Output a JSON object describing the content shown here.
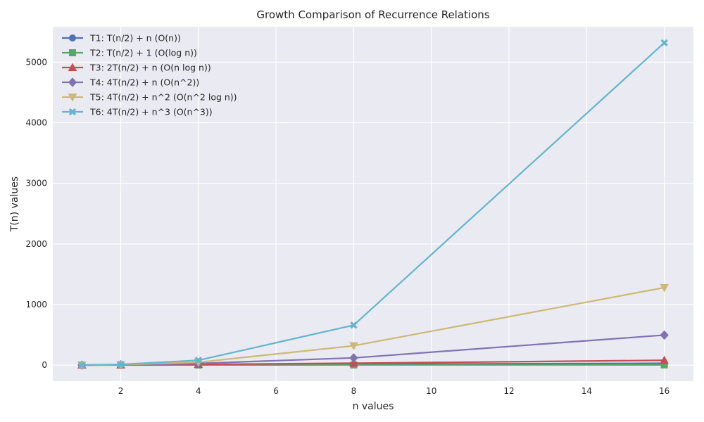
{
  "chart_data": {
    "type": "line",
    "title": "Growth Comparison of Recurrence Relations",
    "xlabel": "n values",
    "ylabel": "T(n) values",
    "xlim": [
      0.25,
      16.75
    ],
    "ylim": [
      -265,
      5585
    ],
    "xticks": [
      2,
      4,
      6,
      8,
      10,
      12,
      14,
      16
    ],
    "yticks": [
      0,
      1000,
      2000,
      3000,
      4000,
      5000
    ],
    "grid": true,
    "legend_position": "top-left",
    "x": [
      1,
      2,
      4,
      8,
      16
    ],
    "series": [
      {
        "name": "T1: T(n/2) + n (O(n))",
        "color": "#4c72b0",
        "marker": "circle",
        "values": [
          1,
          3,
          7,
          15,
          31
        ]
      },
      {
        "name": "T2: T(n/2) + 1 (O(log n))",
        "color": "#55a868",
        "marker": "square",
        "values": [
          1,
          2,
          3,
          4,
          5
        ]
      },
      {
        "name": "T3: 2T(n/2) + n (O(n log n))",
        "color": "#c44e52",
        "marker": "triangle-up",
        "values": [
          1,
          4,
          12,
          32,
          80
        ]
      },
      {
        "name": "T4: 4T(n/2) + n (O(n^2))",
        "color": "#8172b2",
        "marker": "diamond",
        "values": [
          1,
          6,
          28,
          120,
          496
        ]
      },
      {
        "name": "T5: 4T(n/2) + n^2 (O(n^2 log n))",
        "color": "#ccb974",
        "marker": "triangle-down",
        "values": [
          1,
          8,
          48,
          320,
          1280
        ]
      },
      {
        "name": "T6: 4T(n/2) + n^3 (O(n^3))",
        "color": "#64b5cd",
        "marker": "x",
        "values": [
          1,
          12,
          80,
          660,
          5320
        ]
      }
    ],
    "colors": {
      "plot_background": "#eaeaf2",
      "grid": "#ffffff",
      "text": "#262626"
    }
  }
}
